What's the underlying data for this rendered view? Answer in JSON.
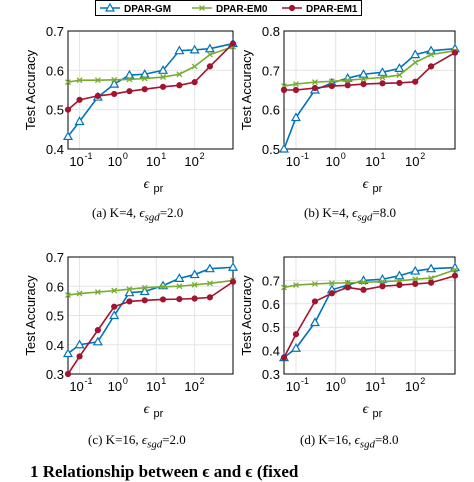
{
  "legend": {
    "items": [
      {
        "label": "DPAR-GM",
        "color": "#0072BD",
        "marker": "triangle"
      },
      {
        "label": "DPAR-EM0",
        "color": "#77AC30",
        "marker": "x"
      },
      {
        "label": "DPAR-EM1",
        "color": "#A2142F",
        "marker": "circle"
      }
    ]
  },
  "captions": [
    {
      "prefix": "(a)  K=4, ",
      "eps": "ϵ",
      "sub": "sgd",
      "suffix": "=2.0"
    },
    {
      "prefix": "(b)  K=4, ",
      "eps": "ϵ",
      "sub": "sgd",
      "suffix": "=8.0"
    },
    {
      "prefix": "(c)  K=16, ",
      "eps": "ϵ",
      "sub": "sgd",
      "suffix": "=2.0"
    },
    {
      "prefix": "(d)  K=16, ",
      "eps": "ϵ",
      "sub": "sgd",
      "suffix": "=8.0"
    }
  ],
  "bottom_text": "1  Relationship between   ϵ   and   ϵ   (fixed",
  "chart_data": [
    {
      "type": "line",
      "panel": "a",
      "xlabel": "ϵ",
      "xlabel_sub": "pr",
      "ylabel": "Test Accuracy",
      "xscale": "log",
      "xlim": [
        0.05,
        1000
      ],
      "xticks": [
        {
          "v": 0.1,
          "label": "10",
          "exp": "-1"
        },
        {
          "v": 1,
          "label": "10",
          "exp": "0"
        },
        {
          "v": 10,
          "label": "10",
          "exp": "1"
        },
        {
          "v": 100,
          "label": "10",
          "exp": "2"
        }
      ],
      "ylim": [
        0.4,
        0.7
      ],
      "yticks": [
        "0.4",
        "0.5",
        "0.6",
        "0.7"
      ],
      "grid": true,
      "x": [
        0.05,
        0.1,
        0.3,
        0.8,
        2,
        5,
        15,
        40,
        100,
        250,
        1000
      ],
      "series": [
        {
          "name": "DPAR-GM",
          "values": [
            0.432,
            0.47,
            0.532,
            0.565,
            0.588,
            0.59,
            0.6,
            0.65,
            0.652,
            0.655,
            0.668
          ]
        },
        {
          "name": "DPAR-EM0",
          "values": [
            0.57,
            0.575,
            0.575,
            0.576,
            0.577,
            0.579,
            0.583,
            0.59,
            0.61,
            0.64,
            0.66
          ]
        },
        {
          "name": "DPAR-EM1",
          "values": [
            0.5,
            0.525,
            0.535,
            0.54,
            0.547,
            0.552,
            0.558,
            0.562,
            0.57,
            0.61,
            0.668
          ]
        }
      ]
    },
    {
      "type": "line",
      "panel": "b",
      "xlabel": "ϵ",
      "xlabel_sub": "pr",
      "ylabel": "Test Accuracy",
      "xscale": "log",
      "xlim": [
        0.05,
        1000
      ],
      "xticks": [
        {
          "v": 0.1,
          "label": "10",
          "exp": "-1"
        },
        {
          "v": 1,
          "label": "10",
          "exp": "0"
        },
        {
          "v": 10,
          "label": "10",
          "exp": "1"
        },
        {
          "v": 100,
          "label": "10",
          "exp": "2"
        }
      ],
      "ylim": [
        0.5,
        0.8
      ],
      "yticks": [
        "0.5",
        "0.6",
        "0.7",
        "0.8"
      ],
      "grid": true,
      "x": [
        0.05,
        0.1,
        0.3,
        0.8,
        2,
        5,
        15,
        40,
        100,
        250,
        1000
      ],
      "series": [
        {
          "name": "DPAR-GM",
          "values": [
            0.5,
            0.58,
            0.65,
            0.668,
            0.68,
            0.69,
            0.695,
            0.705,
            0.74,
            0.75,
            0.755
          ]
        },
        {
          "name": "DPAR-EM0",
          "values": [
            0.66,
            0.665,
            0.67,
            0.672,
            0.675,
            0.678,
            0.682,
            0.688,
            0.72,
            0.74,
            0.75
          ]
        },
        {
          "name": "DPAR-EM1",
          "values": [
            0.65,
            0.65,
            0.655,
            0.66,
            0.662,
            0.665,
            0.667,
            0.668,
            0.671,
            0.71,
            0.745
          ]
        }
      ]
    },
    {
      "type": "line",
      "panel": "c",
      "xlabel": "ϵ",
      "xlabel_sub": "pr",
      "ylabel": "Test Accuracy",
      "xscale": "log",
      "xlim": [
        0.05,
        1000
      ],
      "xticks": [
        {
          "v": 0.1,
          "label": "10",
          "exp": "-1"
        },
        {
          "v": 1,
          "label": "10",
          "exp": "0"
        },
        {
          "v": 10,
          "label": "10",
          "exp": "1"
        },
        {
          "v": 100,
          "label": "10",
          "exp": "2"
        }
      ],
      "ylim": [
        0.3,
        0.7
      ],
      "yticks": [
        "0.3",
        "0.4",
        "0.5",
        "0.6",
        "0.7"
      ],
      "grid": true,
      "x": [
        0.05,
        0.1,
        0.3,
        0.8,
        2,
        5,
        15,
        40,
        100,
        250,
        1000
      ],
      "series": [
        {
          "name": "DPAR-GM",
          "values": [
            0.37,
            0.4,
            0.41,
            0.5,
            0.578,
            0.582,
            0.602,
            0.627,
            0.64,
            0.66,
            0.665
          ]
        },
        {
          "name": "DPAR-EM0",
          "values": [
            0.57,
            0.575,
            0.58,
            0.585,
            0.59,
            0.595,
            0.598,
            0.6,
            0.605,
            0.61,
            0.62
          ]
        },
        {
          "name": "DPAR-EM1",
          "values": [
            0.3,
            0.36,
            0.45,
            0.53,
            0.548,
            0.552,
            0.555,
            0.556,
            0.558,
            0.562,
            0.615
          ]
        }
      ]
    },
    {
      "type": "line",
      "panel": "d",
      "xlabel": "ϵ",
      "xlabel_sub": "pr",
      "ylabel": "Test Accuracy",
      "xscale": "log",
      "xlim": [
        0.05,
        1000
      ],
      "xticks": [
        {
          "v": 0.1,
          "label": "10",
          "exp": "-1"
        },
        {
          "v": 1,
          "label": "10",
          "exp": "0"
        },
        {
          "v": 10,
          "label": "10",
          "exp": "1"
        },
        {
          "v": 100,
          "label": "10",
          "exp": "2"
        }
      ],
      "ylim": [
        0.3,
        0.8
      ],
      "yticks": [
        "0.3",
        "0.4",
        "0.5",
        "0.6",
        "0.7"
      ],
      "grid": true,
      "x": [
        0.05,
        0.1,
        0.3,
        0.8,
        2,
        5,
        15,
        40,
        100,
        250,
        1000
      ],
      "series": [
        {
          "name": "DPAR-GM",
          "values": [
            0.37,
            0.41,
            0.52,
            0.66,
            0.68,
            0.7,
            0.705,
            0.72,
            0.74,
            0.75,
            0.755
          ]
        },
        {
          "name": "DPAR-EM0",
          "values": [
            0.67,
            0.68,
            0.685,
            0.688,
            0.69,
            0.692,
            0.695,
            0.698,
            0.705,
            0.71,
            0.745
          ]
        },
        {
          "name": "DPAR-EM1",
          "values": [
            0.37,
            0.47,
            0.61,
            0.645,
            0.67,
            0.66,
            0.675,
            0.68,
            0.685,
            0.69,
            0.72
          ]
        }
      ]
    }
  ]
}
